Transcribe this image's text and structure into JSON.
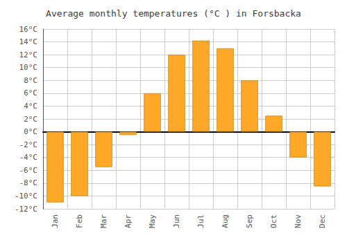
{
  "chart_data": {
    "type": "bar",
    "title": "Average monthly temperatures (°C ) in Forsbacka",
    "categories": [
      "Jan",
      "Feb",
      "Mar",
      "Apr",
      "May",
      "Jun",
      "Jul",
      "Aug",
      "Sep",
      "Oct",
      "Nov",
      "Dec"
    ],
    "values": [
      -11,
      -10,
      -5.5,
      -0.5,
      6,
      12,
      14.2,
      13,
      8,
      2.5,
      -4,
      -8.5
    ],
    "color": "#FFA726",
    "ylim": [
      -12,
      16
    ],
    "yticks": [
      {
        "value": -12,
        "label": "-12°C"
      },
      {
        "value": -10,
        "label": "-10°C"
      },
      {
        "value": -8,
        "label": "-8°C"
      },
      {
        "value": -6,
        "label": "-6°C"
      },
      {
        "value": -4,
        "label": "-4°C"
      },
      {
        "value": -2,
        "label": "-2°C"
      },
      {
        "value": 0,
        "label": "0°C"
      },
      {
        "value": 2,
        "label": "2°C"
      },
      {
        "value": 4,
        "label": "4°C"
      },
      {
        "value": 6,
        "label": "6°C"
      },
      {
        "value": 8,
        "label": "8°C"
      },
      {
        "value": 10,
        "label": "10°C"
      },
      {
        "value": 12,
        "label": "12°C"
      },
      {
        "value": 14,
        "label": "14°C"
      },
      {
        "value": 16,
        "label": "16°C"
      }
    ],
    "grid": true
  }
}
